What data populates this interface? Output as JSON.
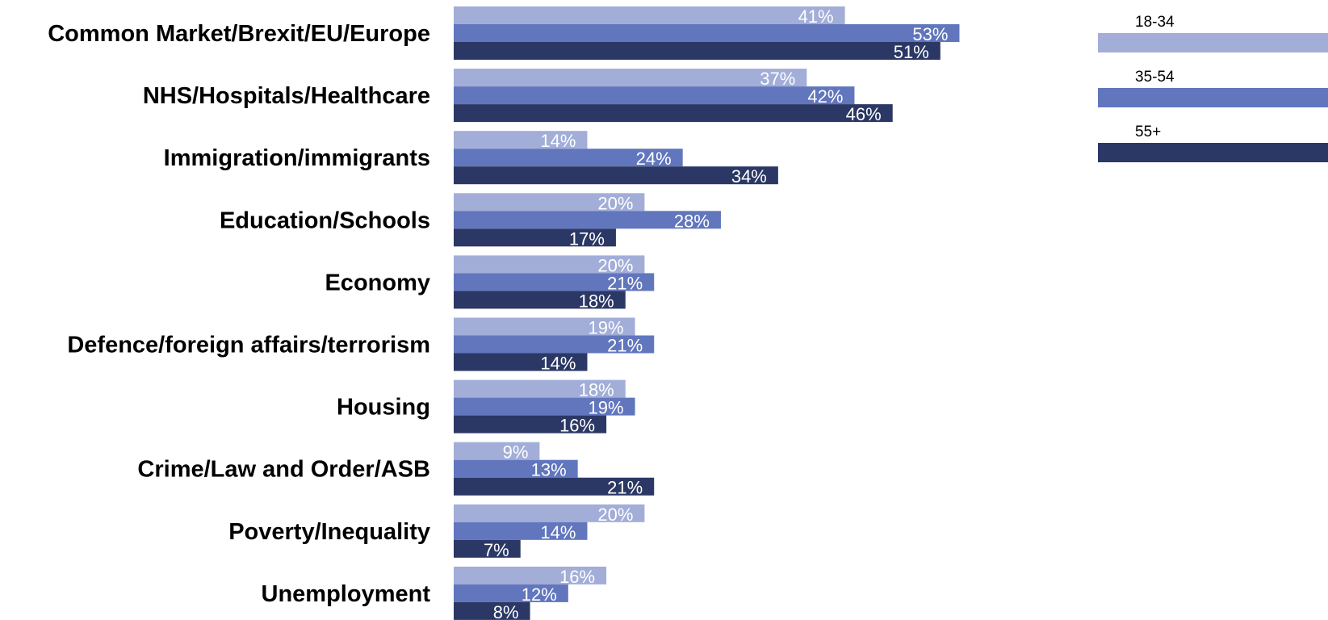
{
  "chart_data": {
    "type": "bar",
    "orientation": "horizontal",
    "categories": [
      "Common Market/Brexit/EU/Europe",
      "NHS/Hospitals/Healthcare",
      "Immigration/immigrants",
      "Education/Schools",
      "Economy",
      "Defence/foreign affairs/terrorism",
      "Housing",
      "Crime/Law and Order/ASB",
      "Poverty/Inequality",
      "Unemployment"
    ],
    "series": [
      {
        "name": "18-34",
        "color": "#a2aed8",
        "values": [
          41,
          37,
          14,
          20,
          20,
          19,
          18,
          9,
          20,
          16
        ]
      },
      {
        "name": "35-54",
        "color": "#6176bd",
        "values": [
          53,
          42,
          24,
          28,
          21,
          21,
          19,
          13,
          14,
          12
        ]
      },
      {
        "name": "55+",
        "color": "#2b3865",
        "values": [
          51,
          46,
          34,
          17,
          18,
          14,
          16,
          21,
          7,
          8
        ]
      }
    ],
    "value_suffix": "%",
    "legend_position": "top-right",
    "grid": false,
    "xlim": [
      0,
      100
    ]
  }
}
